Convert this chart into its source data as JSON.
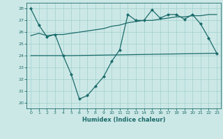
{
  "xlabel": "Humidex (Indice chaleur)",
  "bg_color": "#cce8e6",
  "line_color": "#1a6b6a",
  "grid_color": "#9fd0ce",
  "xlim": [
    -0.5,
    23.5
  ],
  "ylim": [
    19.5,
    28.5
  ],
  "yticks": [
    20,
    21,
    22,
    23,
    24,
    25,
    26,
    27,
    28
  ],
  "xticks": [
    0,
    1,
    2,
    3,
    4,
    5,
    6,
    7,
    8,
    9,
    10,
    11,
    12,
    13,
    14,
    15,
    16,
    17,
    18,
    19,
    20,
    21,
    22,
    23
  ],
  "line1_x": [
    0,
    1,
    2,
    3,
    4,
    5,
    6,
    7,
    8,
    9,
    10,
    11,
    12,
    13,
    14,
    15,
    16,
    17,
    18,
    19,
    20,
    21,
    22,
    23
  ],
  "line1_y": [
    28.0,
    26.6,
    25.6,
    25.8,
    24.0,
    22.4,
    20.3,
    20.6,
    21.4,
    22.2,
    23.5,
    24.5,
    27.5,
    27.0,
    27.0,
    27.9,
    27.2,
    27.5,
    27.5,
    27.1,
    27.5,
    26.7,
    25.5,
    24.2
  ],
  "line2_x": [
    0,
    5,
    23
  ],
  "line2_y": [
    24.0,
    24.0,
    24.2
  ],
  "line3_x": [
    0,
    1,
    2,
    3,
    4,
    5,
    6,
    7,
    8,
    9,
    10,
    11,
    12,
    13,
    14,
    15,
    16,
    17,
    18,
    19,
    20,
    21,
    22,
    23
  ],
  "line3_y": [
    25.7,
    25.9,
    25.7,
    25.8,
    25.8,
    25.9,
    26.0,
    26.1,
    26.2,
    26.3,
    26.5,
    26.6,
    26.8,
    26.9,
    27.0,
    27.0,
    27.1,
    27.2,
    27.3,
    27.3,
    27.4,
    27.4,
    27.5,
    27.5
  ]
}
